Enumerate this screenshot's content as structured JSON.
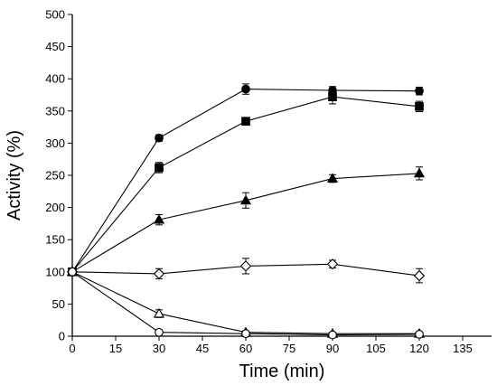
{
  "chart_data": {
    "type": "scatter",
    "xlabel": "Time (min)",
    "ylabel": "Activity (%)",
    "xlim": [
      0,
      145
    ],
    "ylim": [
      0,
      500
    ],
    "xticks": [
      0,
      15,
      30,
      45,
      60,
      75,
      90,
      105,
      120,
      135
    ],
    "yticks": [
      0,
      50,
      100,
      150,
      200,
      250,
      300,
      350,
      400,
      450,
      500
    ],
    "grid": false,
    "legend": "none",
    "series": [
      {
        "marker": "filled-circle",
        "x": [
          0,
          30,
          60,
          90,
          120
        ],
        "y": [
          100,
          308,
          384,
          382,
          381
        ],
        "err": [
          0,
          5,
          8,
          6,
          6
        ]
      },
      {
        "marker": "filled-square",
        "x": [
          0,
          30,
          60,
          90,
          120
        ],
        "y": [
          100,
          262,
          334,
          372,
          357
        ],
        "err": [
          0,
          8,
          4,
          11,
          8
        ]
      },
      {
        "marker": "filled-triangle",
        "x": [
          0,
          30,
          60,
          90,
          120
        ],
        "y": [
          100,
          181,
          211,
          245,
          253
        ],
        "err": [
          0,
          8,
          12,
          6,
          10
        ]
      },
      {
        "marker": "open-diamond",
        "x": [
          0,
          30,
          60,
          90,
          120
        ],
        "y": [
          100,
          97,
          109,
          112,
          94
        ],
        "err": [
          0,
          8,
          12,
          6,
          11
        ]
      },
      {
        "marker": "open-triangle",
        "x": [
          0,
          30,
          60,
          90,
          120
        ],
        "y": [
          100,
          35,
          6,
          4,
          4
        ],
        "err": [
          0,
          6,
          2,
          2,
          2
        ]
      },
      {
        "marker": "open-circle",
        "x": [
          0,
          30,
          60,
          90,
          120
        ],
        "y": [
          100,
          6,
          4,
          2,
          3
        ],
        "err": [
          0,
          3,
          2,
          2,
          2
        ]
      }
    ]
  }
}
